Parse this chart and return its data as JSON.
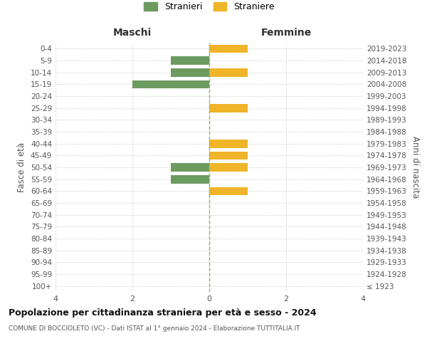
{
  "age_groups": [
    "100+",
    "95-99",
    "90-94",
    "85-89",
    "80-84",
    "75-79",
    "70-74",
    "65-69",
    "60-64",
    "55-59",
    "50-54",
    "45-49",
    "40-44",
    "35-39",
    "30-34",
    "25-29",
    "20-24",
    "15-19",
    "10-14",
    "5-9",
    "0-4"
  ],
  "birth_years": [
    "≤ 1923",
    "1924-1928",
    "1929-1933",
    "1934-1938",
    "1939-1943",
    "1944-1948",
    "1949-1953",
    "1954-1958",
    "1959-1963",
    "1964-1968",
    "1969-1973",
    "1974-1978",
    "1979-1983",
    "1984-1988",
    "1989-1993",
    "1994-1998",
    "1999-2003",
    "2004-2008",
    "2009-2013",
    "2014-2018",
    "2019-2023"
  ],
  "males": [
    0,
    0,
    0,
    0,
    0,
    0,
    0,
    0,
    0,
    1,
    1,
    0,
    0,
    0,
    0,
    0,
    0,
    2,
    1,
    1,
    0
  ],
  "females": [
    0,
    0,
    0,
    0,
    0,
    0,
    0,
    0,
    1,
    0,
    1,
    1,
    1,
    0,
    0,
    1,
    0,
    0,
    1,
    0,
    1
  ],
  "male_color": "#6d9b5f",
  "female_color": "#f0b429",
  "title": "Popolazione per cittadinanza straniera per età e sesso - 2024",
  "subtitle": "COMUNE DI BOCCIOLETO (VC) - Dati ISTAT al 1° gennaio 2024 - Elaborazione TUTTITALIA.IT",
  "xlabel_left": "Maschi",
  "xlabel_right": "Femmine",
  "ylabel_left": "Fasce di età",
  "ylabel_right": "Anni di nascita",
  "legend_male": "Stranieri",
  "legend_female": "Straniere",
  "xlim": 4,
  "background_color": "#ffffff",
  "grid_color": "#cccccc"
}
